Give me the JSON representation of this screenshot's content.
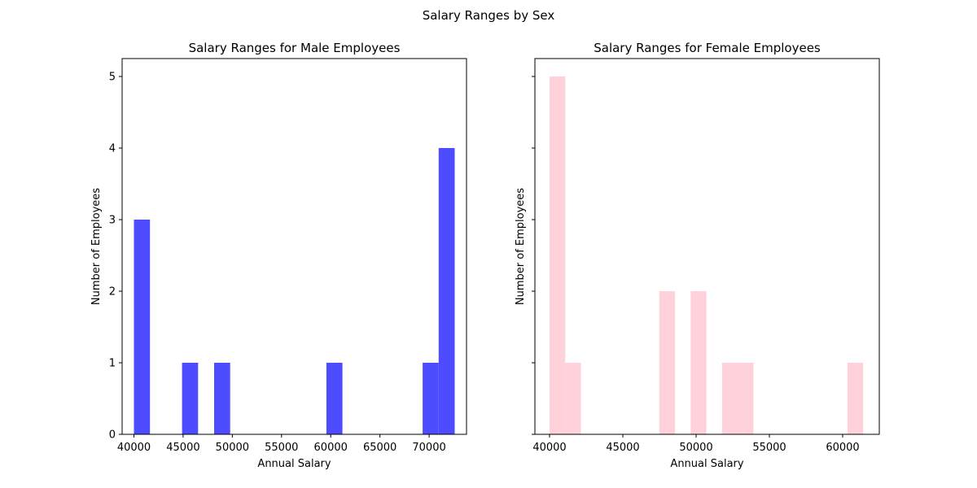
{
  "chart_data": {
    "suptitle": "Salary Ranges by Sex",
    "type": "histogram",
    "shared_y": true,
    "panels": [
      {
        "title": "Salary Ranges for Male Employees",
        "xlabel": "Annual Salary",
        "ylabel": "Number of Employees",
        "color": "#4d4dff",
        "xlim": [
          38800,
          73800
        ],
        "xticks": [
          40000,
          45000,
          50000,
          55000,
          60000,
          65000,
          70000
        ],
        "bars": [
          {
            "x0": 40000,
            "x1": 41630,
            "count": 3
          },
          {
            "x0": 41630,
            "x1": 43260,
            "count": 0
          },
          {
            "x0": 43260,
            "x1": 44890,
            "count": 0
          },
          {
            "x0": 44890,
            "x1": 46520,
            "count": 1
          },
          {
            "x0": 46520,
            "x1": 48150,
            "count": 0
          },
          {
            "x0": 48150,
            "x1": 49780,
            "count": 1
          },
          {
            "x0": 49780,
            "x1": 51410,
            "count": 0
          },
          {
            "x0": 51410,
            "x1": 53040,
            "count": 0
          },
          {
            "x0": 53040,
            "x1": 54670,
            "count": 0
          },
          {
            "x0": 54670,
            "x1": 56300,
            "count": 0
          },
          {
            "x0": 56300,
            "x1": 57930,
            "count": 0
          },
          {
            "x0": 57930,
            "x1": 59560,
            "count": 0
          },
          {
            "x0": 59560,
            "x1": 61190,
            "count": 1
          },
          {
            "x0": 61190,
            "x1": 62820,
            "count": 0
          },
          {
            "x0": 62820,
            "x1": 64450,
            "count": 0
          },
          {
            "x0": 64450,
            "x1": 66080,
            "count": 0
          },
          {
            "x0": 66080,
            "x1": 67710,
            "count": 0
          },
          {
            "x0": 67710,
            "x1": 69340,
            "count": 0
          },
          {
            "x0": 69340,
            "x1": 70970,
            "count": 1
          },
          {
            "x0": 70970,
            "x1": 72600,
            "count": 4
          }
        ]
      },
      {
        "title": "Salary Ranges for Female Employees",
        "xlabel": "Annual Salary",
        "ylabel": "Number of Employees",
        "color": "#ffd1da",
        "xlim": [
          39000,
          62500
        ],
        "xticks": [
          40000,
          45000,
          50000,
          55000,
          60000
        ],
        "bars": [
          {
            "x0": 40000,
            "x1": 41070,
            "count": 5
          },
          {
            "x0": 41070,
            "x1": 42140,
            "count": 1
          },
          {
            "x0": 42140,
            "x1": 43210,
            "count": 0
          },
          {
            "x0": 43210,
            "x1": 44280,
            "count": 0
          },
          {
            "x0": 44280,
            "x1": 45350,
            "count": 0
          },
          {
            "x0": 45350,
            "x1": 46420,
            "count": 0
          },
          {
            "x0": 46420,
            "x1": 47490,
            "count": 0
          },
          {
            "x0": 47490,
            "x1": 48560,
            "count": 2
          },
          {
            "x0": 48560,
            "x1": 49630,
            "count": 0
          },
          {
            "x0": 49630,
            "x1": 50700,
            "count": 2
          },
          {
            "x0": 50700,
            "x1": 51770,
            "count": 0
          },
          {
            "x0": 51770,
            "x1": 52840,
            "count": 1
          },
          {
            "x0": 52840,
            "x1": 53910,
            "count": 1
          },
          {
            "x0": 53910,
            "x1": 54980,
            "count": 0
          },
          {
            "x0": 54980,
            "x1": 56050,
            "count": 0
          },
          {
            "x0": 56050,
            "x1": 57120,
            "count": 0
          },
          {
            "x0": 57120,
            "x1": 58190,
            "count": 0
          },
          {
            "x0": 58190,
            "x1": 59260,
            "count": 0
          },
          {
            "x0": 59260,
            "x1": 60330,
            "count": 0
          },
          {
            "x0": 60330,
            "x1": 61400,
            "count": 1
          }
        ]
      }
    ],
    "ylim": [
      0,
      5.25
    ],
    "yticks": [
      0,
      1,
      2,
      3,
      4,
      5
    ],
    "grid": false
  }
}
